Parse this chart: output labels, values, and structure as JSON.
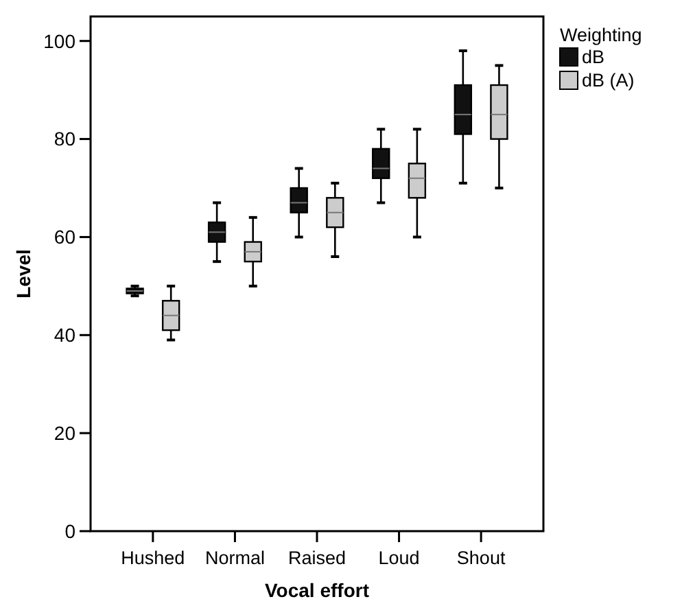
{
  "chart_data": {
    "type": "box",
    "xlabel": "Vocal effort",
    "ylabel": "Level",
    "legend_title": "Weighting",
    "legend": "top right",
    "categories": [
      "Hushed",
      "Normal",
      "Raised",
      "Loud",
      "Shout"
    ],
    "ylim": [
      0,
      105
    ],
    "yticks": [
      0,
      20,
      40,
      60,
      80,
      100
    ],
    "grid": false,
    "series": [
      {
        "name": "dB",
        "color": "#111111",
        "boxes": [
          {
            "low": 48,
            "q1": 48.5,
            "median": 49,
            "q3": 49.5,
            "high": 50
          },
          {
            "low": 55,
            "q1": 59,
            "median": 61,
            "q3": 63,
            "high": 67
          },
          {
            "low": 60,
            "q1": 65,
            "median": 67,
            "q3": 70,
            "high": 74
          },
          {
            "low": 67,
            "q1": 72,
            "median": 74,
            "q3": 78,
            "high": 82
          },
          {
            "low": 71,
            "q1": 81,
            "median": 85,
            "q3": 91,
            "high": 98
          }
        ]
      },
      {
        "name": "dB (A)",
        "color": "#cccccc",
        "boxes": [
          {
            "low": 39,
            "q1": 41,
            "median": 44,
            "q3": 47,
            "high": 50
          },
          {
            "low": 50,
            "q1": 55,
            "median": 57,
            "q3": 59,
            "high": 64
          },
          {
            "low": 56,
            "q1": 62,
            "median": 65,
            "q3": 68,
            "high": 71
          },
          {
            "low": 60,
            "q1": 68,
            "median": 72,
            "q3": 75,
            "high": 82
          },
          {
            "low": 70,
            "q1": 80,
            "median": 85,
            "q3": 91,
            "high": 95
          }
        ]
      }
    ]
  }
}
